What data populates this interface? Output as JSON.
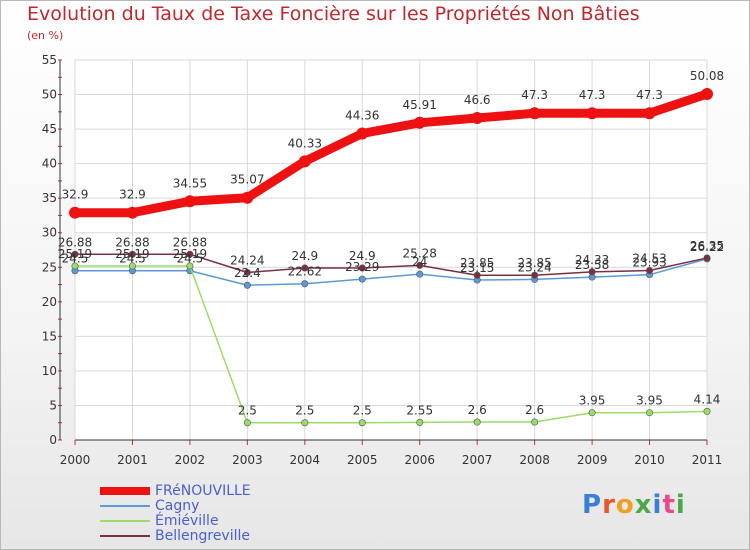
{
  "title": "Evolution du Taux de Taxe Foncière sur les Propriétés Non Bâties",
  "unit_label": "(en %)",
  "logo": {
    "text": "Proxiti",
    "colors": [
      "#3a7fd6",
      "#e8572c",
      "#f0a020",
      "#4aa84a",
      "#3a7fd6",
      "#e84a8a",
      "#4aa84a"
    ]
  },
  "chart_data": {
    "type": "line",
    "x": [
      "2000",
      "2001",
      "2002",
      "2003",
      "2004",
      "2005",
      "2006",
      "2007",
      "2008",
      "2009",
      "2010",
      "2011"
    ],
    "ylim": [
      0,
      55
    ],
    "yticks": [
      0,
      5,
      10,
      15,
      20,
      25,
      30,
      35,
      40,
      45,
      50,
      55
    ],
    "grid": true,
    "legend_position": "bottom-left",
    "series": [
      {
        "name": "Cagny",
        "color": "#5b9bd5",
        "width": 1.5,
        "values": [
          24.5,
          24.5,
          24.5,
          22.4,
          22.62,
          23.29,
          24.0,
          23.15,
          23.24,
          23.58,
          23.93,
          26.22
        ],
        "labels": [
          "24.5",
          "24.5",
          "24.5",
          "22.4",
          "22.62",
          "23.29",
          "24",
          "23.15",
          "23.24",
          "23.58",
          "23.93",
          "26.22"
        ]
      },
      {
        "name": "Émiéville",
        "color": "#99dd66",
        "width": 1.5,
        "values": [
          25.19,
          25.19,
          25.19,
          2.5,
          2.5,
          2.5,
          2.55,
          2.6,
          2.6,
          3.95,
          3.95,
          4.14
        ],
        "labels": [
          "25.19",
          "25.19",
          "25.19",
          "2.5",
          "2.5",
          "2.5",
          "2.55",
          "2.6",
          "2.6",
          "3.95",
          "3.95",
          "4.14"
        ]
      },
      {
        "name": "Bellengreville",
        "color": "#7a3040",
        "width": 1.5,
        "values": [
          26.88,
          26.88,
          26.88,
          24.24,
          24.9,
          24.9,
          25.28,
          23.85,
          23.85,
          24.33,
          24.53,
          26.35
        ],
        "labels": [
          "26.88",
          "26.88",
          "26.88",
          "24.24",
          "24.9",
          "24.9",
          "25.28",
          "23.85",
          "23.85",
          "24.33",
          "24.53",
          "26.35"
        ]
      },
      {
        "name": "FRéNOUVILLE",
        "color": "#ee1111",
        "width": 9,
        "values": [
          32.9,
          32.9,
          34.55,
          35.07,
          40.33,
          44.36,
          45.91,
          46.6,
          47.3,
          47.3,
          47.3,
          50.08
        ],
        "labels": [
          "32.9",
          "32.9",
          "34.55",
          "35.07",
          "40.33",
          "44.36",
          "45.91",
          "46.6",
          "47.3",
          "47.3",
          "47.3",
          "50.08"
        ]
      }
    ]
  },
  "legend": [
    {
      "name": "FRéNOUVILLE",
      "color": "#ee1111",
      "thickness": 8
    },
    {
      "name": "Cagny",
      "color": "#5b9bd5",
      "thickness": 2
    },
    {
      "name": "Émiéville",
      "color": "#99dd66",
      "thickness": 2
    },
    {
      "name": "Bellengreville",
      "color": "#7a3040",
      "thickness": 2
    }
  ]
}
